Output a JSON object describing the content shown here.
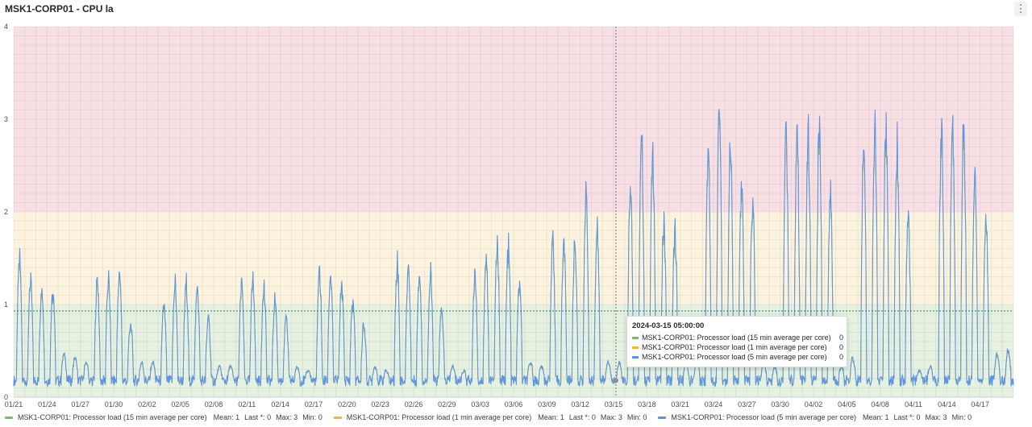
{
  "panel": {
    "title": "MSK1-CORP01 - CPU la",
    "menu_icon": "⋮"
  },
  "colors": {
    "series_15min": "#73bf69",
    "series_1min": "#f2b536",
    "series_5min": "#5794f2",
    "band_red": "#f8dfe3",
    "band_yellow": "#fcf3de",
    "band_green": "#e6f1e1",
    "threshold_line": "#1f7a4c"
  },
  "chart_data": {
    "type": "area",
    "x_start": "2024-01-21",
    "x_end": "2024-04-20",
    "x_tick_labels": [
      "01/21",
      "01/24",
      "01/27",
      "01/30",
      "02/02",
      "02/05",
      "02/08",
      "02/11",
      "02/14",
      "02/17",
      "02/20",
      "02/23",
      "02/26",
      "02/29",
      "03/03",
      "03/06",
      "03/09",
      "03/12",
      "03/15",
      "03/18",
      "03/21",
      "03/24",
      "03/27",
      "03/30",
      "04/02",
      "04/05",
      "04/08",
      "04/11",
      "04/14",
      "04/17"
    ],
    "ylim": [
      0,
      4
    ],
    "y_ticks": [
      0,
      1,
      2,
      3,
      4
    ],
    "threshold_line": 0.93,
    "bands": [
      {
        "from": 0,
        "to": 1,
        "color": "green"
      },
      {
        "from": 1,
        "to": 2,
        "color": "yellow"
      },
      {
        "from": 2,
        "to": 4,
        "color": "red"
      }
    ],
    "hover_x": "2024-03-15 05:00:00",
    "daily_peaks": [
      1.6,
      1.35,
      1.25,
      1.2,
      0.5,
      0.45,
      0.4,
      1.35,
      1.35,
      1.45,
      0.85,
      0.4,
      0.4,
      1.05,
      1.3,
      1.3,
      1.25,
      0.9,
      0.35,
      0.35,
      1.3,
      1.35,
      1.25,
      1.15,
      0.9,
      0.35,
      0.3,
      1.45,
      1.4,
      1.3,
      1.1,
      0.85,
      0.35,
      0.3,
      1.55,
      1.5,
      1.45,
      1.4,
      1.0,
      0.35,
      0.3,
      1.45,
      1.6,
      1.75,
      1.7,
      1.3,
      0.4,
      0.35,
      1.75,
      1.8,
      1.8,
      2.4,
      1.95,
      0.4,
      0.4,
      2.45,
      3.05,
      2.8,
      2.0,
      1.95,
      0.4,
      0.45,
      2.9,
      3.4,
      2.9,
      2.45,
      2.3,
      0.4,
      0.35,
      3.05,
      2.95,
      3.0,
      3.15,
      2.3,
      0.35,
      0.45,
      2.95,
      3.15,
      3.2,
      2.95,
      2.1,
      0.3,
      0.35,
      3.1,
      3.15,
      3.15,
      2.6,
      2.1,
      0.5,
      0.55
    ],
    "series": [
      {
        "name": "MSK1-CORP01: Processor load (15 min average per core)",
        "mean": "Mean: 1",
        "last": "Last *: 0",
        "max": "Max: 3",
        "min": "Min: 0",
        "tooltip_value": "0"
      },
      {
        "name": "MSK1-CORP01: Processor load (1 min average per core)",
        "mean": "Mean: 1",
        "last": "Last *: 0",
        "max": "Max: 3",
        "min": "Min: 0",
        "tooltip_value": "0"
      },
      {
        "name": "MSK1-CORP01: Processor load (5 min average per core)",
        "mean": "Mean: 1",
        "last": "Last *: 0",
        "max": "Max: 3",
        "min": "Min: 0",
        "tooltip_value": "0"
      }
    ]
  },
  "tooltip": {
    "time": "2024-03-15 05:00:00"
  }
}
